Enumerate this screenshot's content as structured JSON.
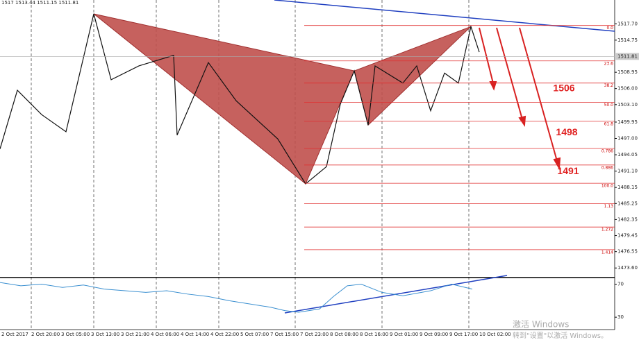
{
  "header": "1517 1513.44 1511.15 1511.81",
  "watermark": [
    "激活 Windows",
    "转到\"设置\"以激活 Windows。"
  ],
  "chart_data": [
    {
      "type": "line",
      "x": [
        0,
        2.5,
        6,
        9.5,
        13.5,
        16,
        20,
        25,
        25.5,
        30,
        34,
        40,
        44,
        47,
        49,
        51,
        53,
        54,
        58,
        60,
        62,
        64,
        66,
        67.8,
        69
      ],
      "series": [
        {
          "name": "price",
          "color": "#111",
          "values": [
            1495.1,
            1505.7,
            1501.3,
            1498.2,
            1519.5,
            1507.6,
            1510.1,
            1512,
            1497.6,
            1510.7,
            1503.8,
            1496.9,
            1488.8,
            1491.9,
            1503.2,
            1509.2,
            1499.4,
            1510.1,
            1507,
            1510.1,
            1502,
            1508.8,
            1507,
            1517.2,
            1512.6
          ]
        }
      ],
      "xlim": [
        0,
        88.5
      ],
      "ylim": [
        1472.5,
        1522
      ],
      "yticks": [
        {
          "value": 1517.7,
          "label": "1517.70"
        },
        {
          "value": 1514.75,
          "label": "1514.75"
        },
        {
          "value": 1511.85,
          "label": "1511.85"
        },
        {
          "value": 1508.95,
          "label": "1508.95"
        },
        {
          "value": 1506,
          "label": "1506.00"
        },
        {
          "value": 1503.1,
          "label": "1503.10"
        },
        {
          "value": 1499.95,
          "label": "1499.95"
        },
        {
          "value": 1497,
          "label": "1497.00"
        },
        {
          "value": 1494.05,
          "label": "1494.05"
        },
        {
          "value": 1491.1,
          "label": "1491.10"
        },
        {
          "value": 1488.15,
          "label": "1488.15"
        },
        {
          "value": 1485.25,
          "label": "1485.25"
        },
        {
          "value": 1482.35,
          "label": "1482.35"
        },
        {
          "value": 1479.45,
          "label": "1479.45"
        },
        {
          "value": 1476.55,
          "label": "1476.55"
        },
        {
          "value": 1473.6,
          "label": "1473.60"
        }
      ],
      "current_price": 1511.81,
      "fib_levels": [
        {
          "price": 1517.4,
          "label": "0.0"
        },
        {
          "price": 1511,
          "label": "23.6"
        },
        {
          "price": 1507,
          "label": "38.2"
        },
        {
          "price": 1503.5,
          "label": "50.0"
        },
        {
          "price": 1500.1,
          "label": "61.8"
        },
        {
          "price": 1495.2,
          "label": "0.786"
        },
        {
          "price": 1492.2,
          "label": "0.886"
        },
        {
          "price": 1488.9,
          "label": "100.0"
        },
        {
          "price": 1485.2,
          "label": "1.13"
        },
        {
          "price": 1481,
          "label": "1.272"
        },
        {
          "price": 1476.9,
          "label": "1.414"
        }
      ],
      "targets": [
        1506,
        1498,
        1491
      ],
      "x_labels": [
        "2 Oct 2017",
        "2 Oct 20:00",
        "3 Oct 05:00",
        "3 Oct 13:00",
        "3 Oct 21:00",
        "4 Oct 06:00",
        "4 Oct 14:00",
        "4 Oct 22:00",
        "5 Oct 07:00",
        "7 Oct 15:00",
        "7 Oct 23:00",
        "8 Oct 08:00",
        "8 Oct 16:00",
        "9 Oct 01:00",
        "9 Oct 09:00",
        "9 Oct 17:00",
        "10 Oct 02:00"
      ]
    },
    {
      "type": "line",
      "x": [
        0,
        3,
        6,
        9,
        12,
        15,
        18,
        21,
        24,
        27,
        30,
        33,
        36,
        39,
        41,
        43,
        46,
        48,
        50,
        52,
        55,
        58,
        62,
        65,
        68
      ],
      "series": [
        {
          "name": "oscillator",
          "color": "#3a8fd0",
          "values": [
            72,
            68,
            70,
            66,
            69,
            64,
            62,
            60,
            62,
            58,
            55,
            50,
            46,
            42,
            38,
            36,
            40,
            55,
            68,
            70,
            60,
            56,
            62,
            70,
            64
          ]
        }
      ],
      "xlim": [
        0,
        88.5
      ],
      "ylim": [
        15,
        78
      ],
      "yticks": [
        70,
        30
      ]
    }
  ]
}
